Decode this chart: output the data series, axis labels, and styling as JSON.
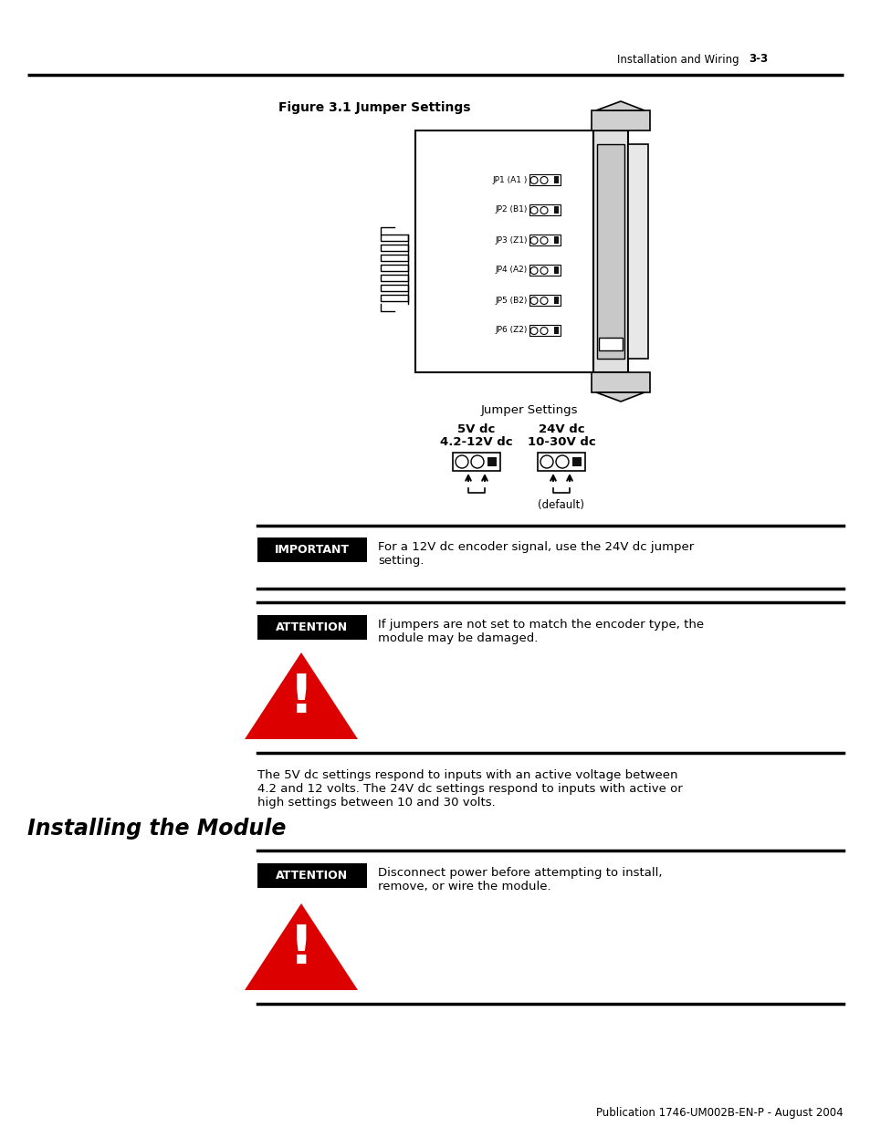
{
  "bg_color": "#ffffff",
  "header_text": "Installation and Wiring",
  "header_page": "3-3",
  "figure_title": "Figure 3.1 Jumper Settings",
  "jumper_labels": [
    "JP1 (A1 )",
    "JP2 (B1)",
    "JP3 (Z1)",
    "JP4 (A2)",
    "JP5 (B2)",
    "JP6 (Z2)"
  ],
  "jumper_settings_label": "Jumper Settings",
  "col1_line1": "5V dc",
  "col1_line2": "4.2-12V dc",
  "col2_line1": "24V dc",
  "col2_line2": "10-30V dc",
  "default_label": "(default)",
  "important_label": "IMPORTANT",
  "important_text": "For a 12V dc encoder signal, use the 24V dc jumper\nsetting.",
  "attention1_label": "ATTENTION",
  "attention1_text": "If jumpers are not set to match the encoder type, the\nmodule may be damaged.",
  "body_text": "The 5V dc settings respond to inputs with an active voltage between\n4.2 and 12 volts. The 24V dc settings respond to inputs with active or\nhigh settings between 10 and 30 volts.",
  "section_title": "Installing the Module",
  "attention2_label": "ATTENTION",
  "attention2_text": "Disconnect power before attempting to install,\nremove, or wire the module.",
  "footer_text": "Publication 1746-UM002B-EN-P - August 2004"
}
